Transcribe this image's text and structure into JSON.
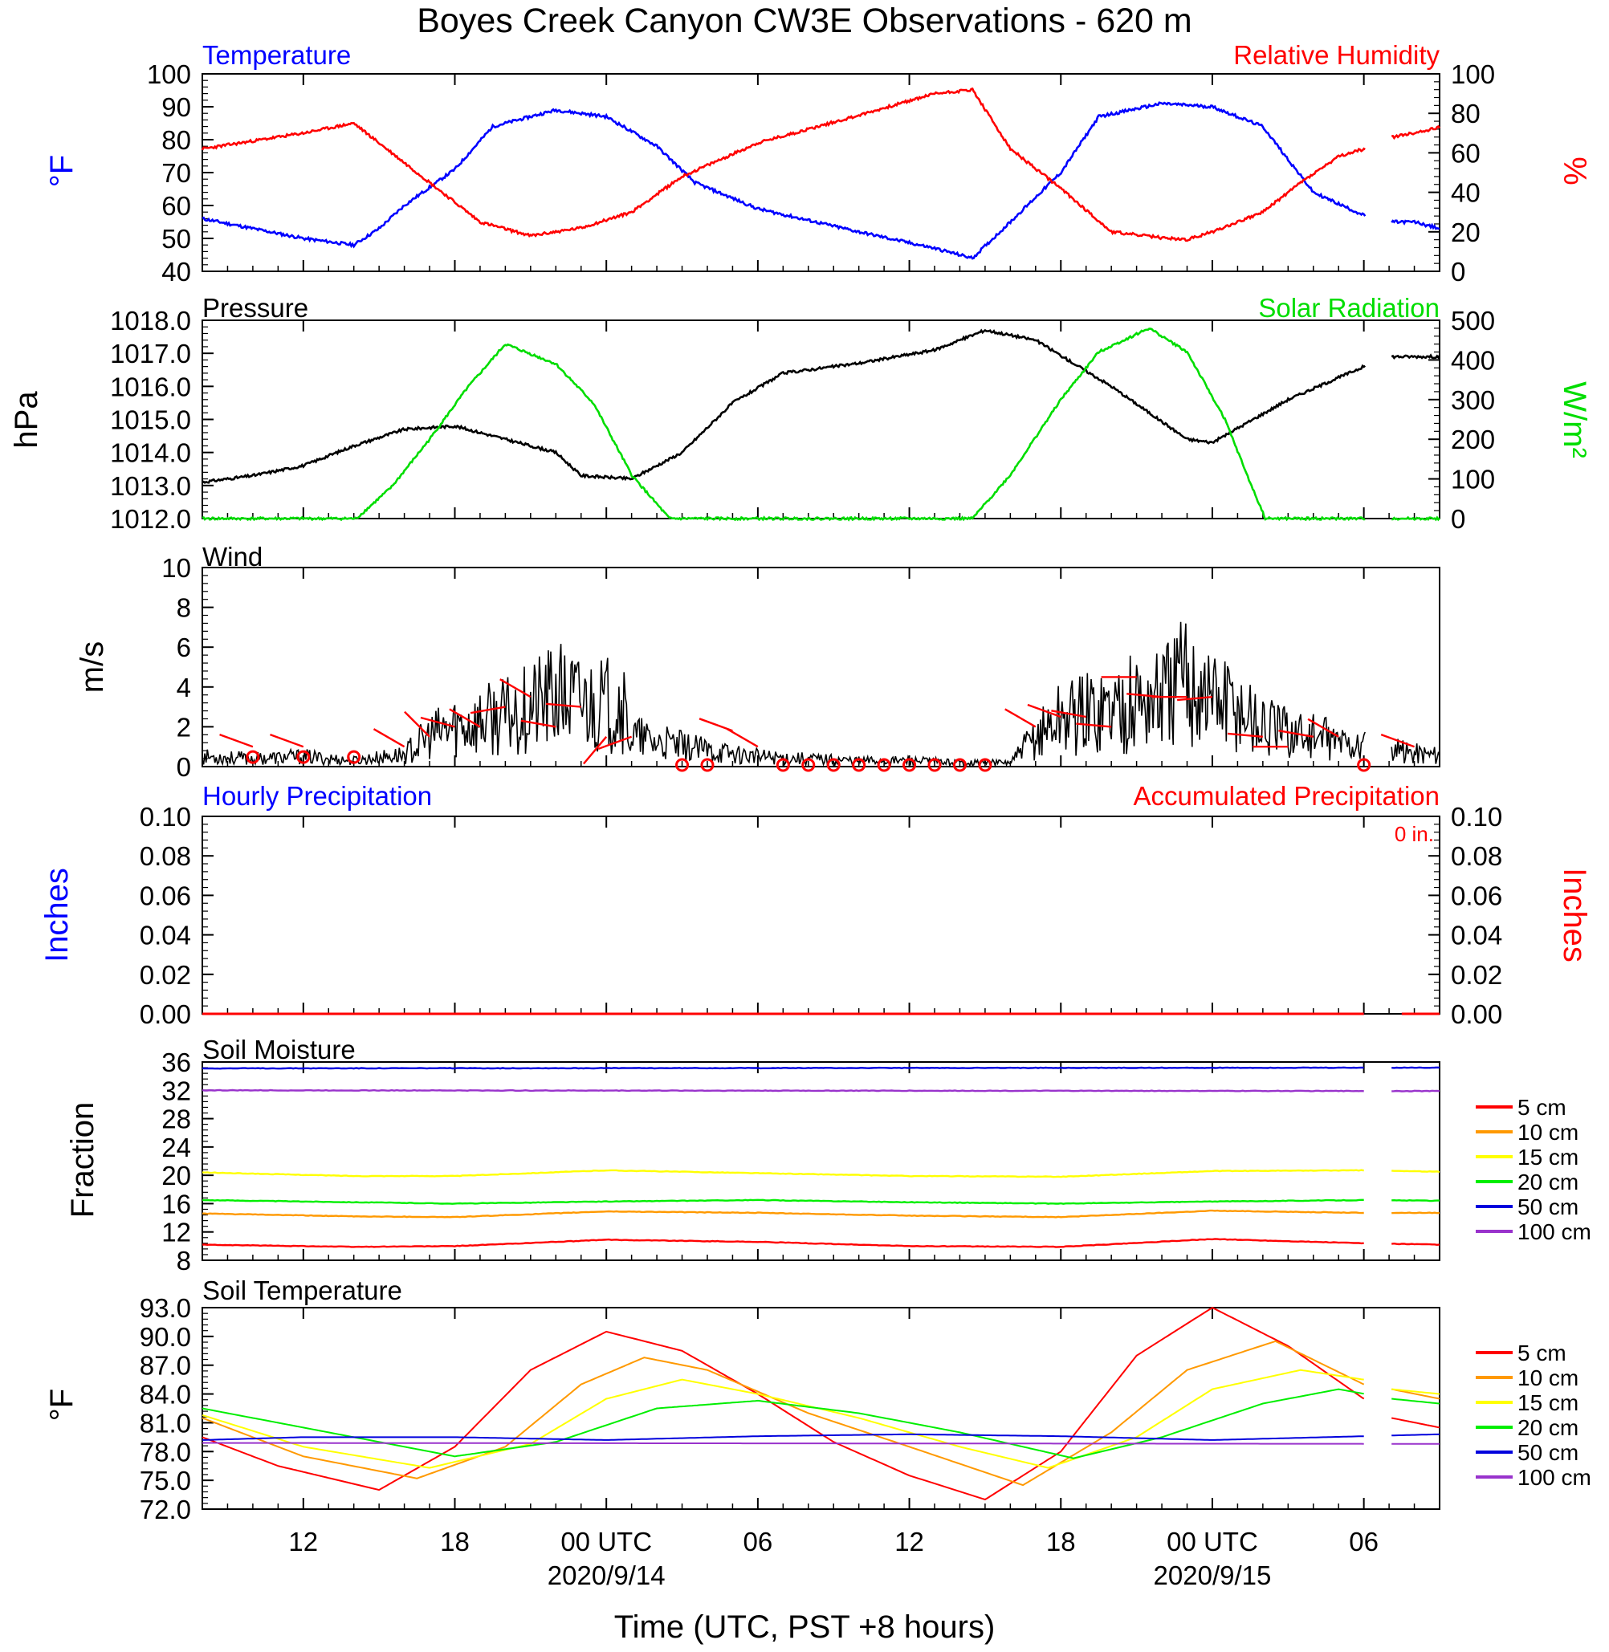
{
  "figure": {
    "title": "Boyes Creek Canyon CW3E Observations - 620 m",
    "xlabel": "Time (UTC, PST +8 hours)",
    "x_ticks": [
      "12",
      "18",
      "00 UTC",
      "06",
      "12",
      "18",
      "00 UTC",
      "06"
    ],
    "x_tick_hours": [
      12,
      18,
      24,
      30,
      36,
      42,
      48,
      54
    ],
    "date_labels": [
      {
        "hour": 24,
        "text": "2020/9/14"
      },
      {
        "hour": 48,
        "text": "2020/9/15"
      }
    ],
    "x_range_hours": [
      8,
      57
    ],
    "gap_hours": [
      54.05,
      55.05
    ]
  },
  "colors": {
    "temperature": "#0000ff",
    "humidity": "#ff0000",
    "pressure": "#000000",
    "solar": "#00dd00",
    "wind": "#000000",
    "barbs": "#ff0000",
    "hourly_precip": "#0000ff",
    "accum_precip": "#ff0000"
  },
  "depth_colors": [
    "#ff0000",
    "#ff9900",
    "#ffff00",
    "#00ee00",
    "#0000dd",
    "#9933cc"
  ],
  "chart_data": [
    {
      "id": "temp_rh",
      "type": "line",
      "left_label": "Temperature",
      "right_label": "Relative Humidity",
      "ylabel_left": "°F",
      "ylabel_right": "%",
      "ylim_left": [
        40,
        100
      ],
      "yticks_left": [
        "40",
        "50",
        "60",
        "70",
        "80",
        "90",
        "100"
      ],
      "ylim_right": [
        0,
        100
      ],
      "yticks_right": [
        "0",
        "20",
        "40",
        "60",
        "80",
        "100"
      ],
      "series": [
        {
          "name": "Temperature",
          "axis": "left",
          "x": [
            8,
            10,
            12,
            14,
            15,
            16,
            18,
            19.5,
            22,
            24,
            26,
            27.5,
            30,
            34,
            37,
            38.5,
            40,
            42,
            43.5,
            46,
            48,
            50,
            51,
            52,
            54,
            55.1,
            56,
            57
          ],
          "y": [
            56,
            53,
            50,
            48,
            53,
            60,
            71,
            84,
            89,
            87,
            78,
            67,
            59,
            52,
            47,
            44,
            55,
            70,
            87,
            91,
            90,
            84,
            74,
            64,
            57,
            55,
            55,
            53
          ]
        },
        {
          "name": "Relative Humidity",
          "axis": "right",
          "x": [
            8,
            10,
            12,
            14,
            15.5,
            17,
            19,
            21,
            23,
            25,
            27,
            30,
            34,
            37,
            38.5,
            40,
            42,
            44,
            46,
            47,
            48,
            50,
            51.5,
            53,
            54,
            55.1,
            56,
            57
          ],
          "y": [
            62,
            66,
            70,
            75,
            60,
            45,
            25,
            18,
            22,
            30,
            48,
            65,
            79,
            90,
            92,
            62,
            42,
            20,
            17,
            16,
            20,
            30,
            45,
            58,
            62,
            68,
            70,
            73
          ]
        }
      ]
    },
    {
      "id": "pressure_solar",
      "type": "line",
      "left_label": "Pressure",
      "right_label": "Solar Radiation",
      "ylabel_left": "hPa",
      "ylabel_right": "W/m²",
      "ylim_left": [
        1012,
        1018
      ],
      "yticks_left": [
        "1012.0",
        "1013.0",
        "1014.0",
        "1015.0",
        "1016.0",
        "1017.0",
        "1018.0"
      ],
      "ylim_right": [
        0,
        500
      ],
      "yticks_right": [
        "0",
        "100",
        "200",
        "300",
        "400",
        "500"
      ],
      "series": [
        {
          "name": "Pressure",
          "axis": "left",
          "x": [
            8,
            10,
            12,
            14,
            16,
            18,
            22,
            23,
            25,
            27,
            29,
            31,
            34,
            37,
            39,
            41,
            44,
            47,
            48,
            51,
            54,
            55.1,
            57
          ],
          "y": [
            1013.1,
            1013.3,
            1013.6,
            1014.2,
            1014.7,
            1014.8,
            1014.0,
            1013.3,
            1013.2,
            1014.0,
            1015.5,
            1016.4,
            1016.7,
            1017.1,
            1017.7,
            1017.4,
            1016.0,
            1014.4,
            1014.3,
            1015.6,
            1016.6,
            1016.9,
            1016.9
          ]
        },
        {
          "name": "Solar Radiation",
          "axis": "right",
          "x": [
            8,
            14.1,
            15.5,
            17,
            18.5,
            20,
            22,
            23.5,
            25,
            26.5,
            27,
            38.5,
            40,
            42,
            43.5,
            45.5,
            47,
            48.5,
            49.5,
            50.1,
            54,
            55.1,
            57
          ],
          "y": [
            0,
            0,
            80,
            200,
            330,
            440,
            390,
            290,
            110,
            0,
            0,
            0,
            110,
            300,
            420,
            480,
            420,
            250,
            90,
            0,
            0,
            0,
            0
          ]
        }
      ]
    },
    {
      "id": "wind",
      "type": "line",
      "left_label": "Wind",
      "ylabel_left": "m/s",
      "ylim_left": [
        0,
        10
      ],
      "yticks_left": [
        "0",
        "2",
        "4",
        "6",
        "8",
        "10"
      ],
      "series": [
        {
          "name": "Wind",
          "axis": "left",
          "x": [
            8,
            10,
            12,
            14,
            16,
            17,
            18,
            20,
            22,
            24,
            24.5,
            25,
            26,
            28,
            30,
            32,
            34,
            36,
            38,
            40,
            41,
            42,
            44,
            46,
            47,
            48,
            49,
            50,
            52,
            54,
            55.1,
            56,
            57
          ],
          "y": [
            0.5,
            0.4,
            0.5,
            0.3,
            0.6,
            1.5,
            2.0,
            2.5,
            3.5,
            3.0,
            3.5,
            1.5,
            1.2,
            0.8,
            0.5,
            0.4,
            0.3,
            0.3,
            0.2,
            0.2,
            1.5,
            2.5,
            3.0,
            3.5,
            4.5,
            3.5,
            3.0,
            2.0,
            1.5,
            1.0,
            0.8,
            0.7,
            0.6
          ]
        }
      ],
      "calm_hours": [
        10,
        12,
        14,
        27,
        28,
        31,
        32,
        33,
        34,
        35,
        36,
        37,
        38,
        39,
        54
      ],
      "barbs": [
        {
          "x": 10,
          "speed": 1.0,
          "dir": 290
        },
        {
          "x": 12,
          "speed": 1.0,
          "dir": 290
        },
        {
          "x": 16,
          "speed": 1.0,
          "dir": 300
        },
        {
          "x": 17,
          "speed": 1.5,
          "dir": 315
        },
        {
          "x": 18,
          "speed": 2.0,
          "dir": 285
        },
        {
          "x": 19,
          "speed": 2.0,
          "dir": 300
        },
        {
          "x": 20,
          "speed": 3.0,
          "dir": 260
        },
        {
          "x": 21,
          "speed": 3.5,
          "dir": 300
        },
        {
          "x": 22,
          "speed": 2.0,
          "dir": 280
        },
        {
          "x": 23,
          "speed": 3.0,
          "dir": 275
        },
        {
          "x": 24,
          "speed": 1.5,
          "dir": 220
        },
        {
          "x": 25,
          "speed": 1.5,
          "dir": 250
        },
        {
          "x": 29,
          "speed": 1.8,
          "dir": 290
        },
        {
          "x": 30,
          "speed": 1.0,
          "dir": 300
        },
        {
          "x": 41,
          "speed": 2.0,
          "dir": 300
        },
        {
          "x": 42,
          "speed": 2.5,
          "dir": 290
        },
        {
          "x": 43,
          "speed": 2.5,
          "dir": 280
        },
        {
          "x": 44,
          "speed": 2.0,
          "dir": 275
        },
        {
          "x": 45,
          "speed": 4.5,
          "dir": 270
        },
        {
          "x": 46,
          "speed": 3.5,
          "dir": 275
        },
        {
          "x": 47,
          "speed": 3.5,
          "dir": 270
        },
        {
          "x": 48,
          "speed": 3.5,
          "dir": 265
        },
        {
          "x": 50,
          "speed": 1.5,
          "dir": 275
        },
        {
          "x": 51,
          "speed": 1.0,
          "dir": 270
        },
        {
          "x": 52,
          "speed": 1.5,
          "dir": 280
        },
        {
          "x": 53,
          "speed": 1.5,
          "dir": 300
        },
        {
          "x": 56,
          "speed": 1.0,
          "dir": 290
        }
      ]
    },
    {
      "id": "precip",
      "type": "line",
      "left_label": "Hourly Precipitation",
      "right_label": "Accumulated Precipitation",
      "total_label": "0 in.",
      "ylabel_left": "Inches",
      "ylabel_right": "Inches",
      "ylim_left": [
        0,
        0.1
      ],
      "yticks_left": [
        "0.00",
        "0.02",
        "0.04",
        "0.06",
        "0.08",
        "0.10"
      ],
      "ylim_right": [
        0,
        0.1
      ],
      "yticks_right": [
        "0.00",
        "0.02",
        "0.04",
        "0.06",
        "0.08",
        "0.10"
      ],
      "series": [
        {
          "name": "Hourly Precipitation",
          "axis": "left",
          "x": [
            8,
            57
          ],
          "y": [
            0,
            0
          ]
        },
        {
          "name": "Accumulated Precipitation",
          "axis": "right",
          "x": [
            8,
            57
          ],
          "y": [
            0,
            0
          ]
        }
      ]
    },
    {
      "id": "soil_moisture",
      "type": "line",
      "left_label": "Soil Moisture",
      "ylabel_left": "Fraction",
      "ylim_left": [
        8,
        36
      ],
      "yticks_left": [
        "8",
        "12",
        "16",
        "20",
        "24",
        "28",
        "32",
        "36"
      ],
      "legend": [
        "5 cm",
        "10 cm",
        "15 cm",
        "20 cm",
        "50 cm",
        "100 cm"
      ],
      "series": [
        {
          "name": "5 cm",
          "x": [
            8,
            14,
            18,
            24,
            30,
            36,
            42,
            48,
            54,
            57
          ],
          "y": [
            10.2,
            9.9,
            10.0,
            10.9,
            10.6,
            10.0,
            9.9,
            11.0,
            10.4,
            10.2
          ]
        },
        {
          "name": "10 cm",
          "x": [
            8,
            14,
            18,
            24,
            30,
            36,
            42,
            48,
            54,
            57
          ],
          "y": [
            14.6,
            14.2,
            14.1,
            14.9,
            14.7,
            14.3,
            14.1,
            15.0,
            14.7,
            14.7
          ]
        },
        {
          "name": "15 cm",
          "x": [
            8,
            14,
            18,
            24,
            30,
            36,
            42,
            48,
            54,
            57
          ],
          "y": [
            20.4,
            19.9,
            19.9,
            20.7,
            20.3,
            19.9,
            19.8,
            20.6,
            20.7,
            20.5
          ]
        },
        {
          "name": "20 cm",
          "x": [
            8,
            14,
            18,
            24,
            30,
            36,
            42,
            48,
            54,
            57
          ],
          "y": [
            16.5,
            16.2,
            16.0,
            16.3,
            16.5,
            16.2,
            16.0,
            16.3,
            16.5,
            16.4
          ]
        },
        {
          "name": "50 cm",
          "x": [
            8,
            57
          ],
          "y": [
            35.1,
            35.2
          ]
        },
        {
          "name": "100 cm",
          "x": [
            8,
            57
          ],
          "y": [
            32.0,
            31.9
          ]
        }
      ]
    },
    {
      "id": "soil_temperature",
      "type": "line",
      "left_label": "Soil Temperature",
      "ylabel_left": "°F",
      "ylim_left": [
        72,
        93
      ],
      "yticks_left": [
        "72.0",
        "75.0",
        "78.0",
        "81.0",
        "84.0",
        "87.0",
        "90.0",
        "93.0"
      ],
      "legend": [
        "5 cm",
        "10 cm",
        "15 cm",
        "20 cm",
        "50 cm",
        "100 cm"
      ],
      "series": [
        {
          "name": "5 cm",
          "x": [
            8,
            11,
            15,
            18,
            21,
            24,
            27,
            30,
            33,
            36,
            39,
            42,
            45,
            48,
            51,
            54,
            55.1,
            57
          ],
          "y": [
            79.5,
            76.5,
            74.0,
            78.5,
            86.5,
            90.5,
            88.5,
            84.0,
            79.0,
            75.5,
            73.0,
            78.0,
            88.0,
            93.0,
            89.0,
            83.5,
            81.5,
            80.5
          ]
        },
        {
          "name": "10 cm",
          "x": [
            8,
            12,
            16.5,
            20,
            23,
            25.5,
            28,
            32,
            36,
            40.5,
            44,
            47,
            50.5,
            54,
            55.1,
            57
          ],
          "y": [
            81.5,
            77.5,
            75.2,
            78.5,
            85.0,
            87.8,
            86.5,
            82.0,
            78.5,
            74.5,
            80.0,
            86.5,
            89.5,
            85.0,
            84.5,
            83.5
          ]
        },
        {
          "name": "15 cm",
          "x": [
            8,
            12,
            17,
            21,
            24,
            27,
            30,
            34,
            38,
            41.5,
            45,
            48,
            51.5,
            54,
            55.1,
            57
          ],
          "y": [
            81.8,
            78.5,
            76.3,
            78.8,
            83.5,
            85.5,
            84.0,
            81.5,
            78.5,
            76.3,
            79.5,
            84.5,
            86.5,
            85.5,
            84.5,
            84.0
          ]
        },
        {
          "name": "20 cm",
          "x": [
            8,
            13,
            18,
            22,
            26,
            30,
            34,
            38,
            42.5,
            46,
            50,
            53,
            55.1,
            57
          ],
          "y": [
            82.5,
            80.0,
            77.5,
            79.0,
            82.5,
            83.3,
            82.0,
            80.0,
            77.3,
            79.5,
            83.0,
            84.5,
            83.5,
            83.0
          ]
        },
        {
          "name": "50 cm",
          "x": [
            8,
            12,
            18,
            24,
            30,
            36,
            42,
            48,
            54,
            57
          ],
          "y": [
            79.2,
            79.5,
            79.5,
            79.2,
            79.6,
            79.8,
            79.6,
            79.2,
            79.6,
            79.8
          ]
        },
        {
          "name": "100 cm",
          "x": [
            8,
            57
          ],
          "y": [
            78.9,
            78.8
          ]
        }
      ]
    }
  ]
}
